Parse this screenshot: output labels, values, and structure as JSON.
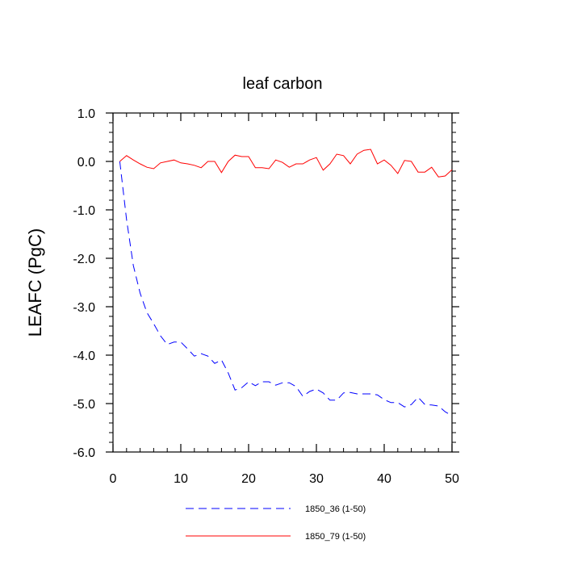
{
  "chart_data": {
    "type": "line",
    "title": "leaf carbon",
    "xlabel": "",
    "ylabel": "LEAFC  (PgC)",
    "xlim": [
      0,
      50
    ],
    "ylim": [
      -6.0,
      1.0
    ],
    "xticks": [
      0,
      10,
      20,
      30,
      40,
      50
    ],
    "xtick_labels": [
      "0",
      "10",
      "20",
      "30",
      "40",
      "50"
    ],
    "yticks": [
      1.0,
      0.0,
      -1.0,
      -2.0,
      -3.0,
      -4.0,
      -5.0,
      -6.0
    ],
    "ytick_labels": [
      "1.0",
      "0.0",
      "-1.0",
      "-2.0",
      "-3.0",
      "-4.0",
      "-5.0",
      "-6.0"
    ],
    "grid": false,
    "legend_position": "bottom",
    "x": [
      1,
      2,
      3,
      4,
      5,
      6,
      7,
      8,
      9,
      10,
      11,
      12,
      13,
      14,
      15,
      16,
      17,
      18,
      19,
      20,
      21,
      22,
      23,
      24,
      25,
      26,
      27,
      28,
      29,
      30,
      31,
      32,
      33,
      34,
      35,
      36,
      37,
      38,
      39,
      40,
      41,
      42,
      43,
      44,
      45,
      46,
      47,
      48,
      49,
      50
    ],
    "series": [
      {
        "name": "1850_36 (1-50)",
        "color": "#0000ff",
        "dash": "dashed",
        "values": [
          0.0,
          -1.2,
          -2.15,
          -2.72,
          -3.12,
          -3.35,
          -3.6,
          -3.78,
          -3.73,
          -3.73,
          -3.87,
          -4.02,
          -3.97,
          -4.02,
          -4.17,
          -4.1,
          -4.37,
          -4.72,
          -4.67,
          -4.55,
          -4.63,
          -4.55,
          -4.55,
          -4.62,
          -4.57,
          -4.57,
          -4.65,
          -4.85,
          -4.75,
          -4.7,
          -4.78,
          -4.93,
          -4.93,
          -4.78,
          -4.77,
          -4.8,
          -4.8,
          -4.8,
          -4.82,
          -4.92,
          -4.98,
          -4.98,
          -5.07,
          -5.02,
          -4.87,
          -5.02,
          -5.03,
          -5.05,
          -5.17,
          -5.25
        ]
      },
      {
        "name": "1850_79 (1-50)",
        "color": "#ff0000",
        "dash": "solid",
        "values": [
          0.0,
          0.12,
          0.03,
          -0.05,
          -0.12,
          -0.15,
          -0.03,
          0.0,
          0.03,
          -0.03,
          -0.05,
          -0.08,
          -0.13,
          0.0,
          0.0,
          -0.23,
          0.0,
          0.13,
          0.1,
          0.1,
          -0.13,
          -0.13,
          -0.15,
          0.03,
          -0.02,
          -0.12,
          -0.05,
          -0.05,
          0.03,
          0.08,
          -0.18,
          -0.05,
          0.15,
          0.12,
          -0.05,
          0.15,
          0.23,
          0.25,
          -0.05,
          0.03,
          -0.08,
          -0.25,
          0.02,
          0.0,
          -0.22,
          -0.22,
          -0.12,
          -0.32,
          -0.3,
          -0.17
        ]
      }
    ]
  }
}
